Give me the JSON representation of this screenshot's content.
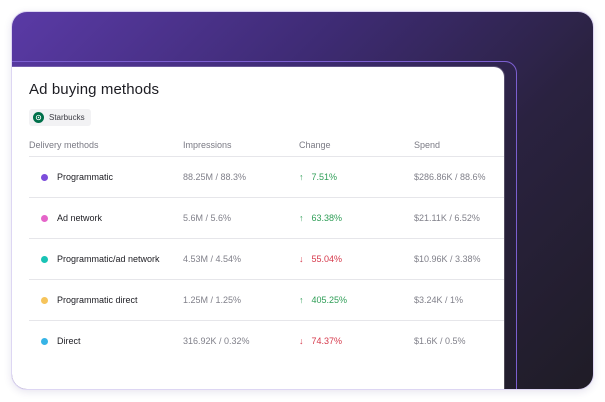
{
  "card": {
    "title": "Ad buying methods",
    "advertiser_chip": "Starbucks"
  },
  "table": {
    "headers": {
      "method": "Delivery methods",
      "impressions": "Impressions",
      "change": "Change",
      "spend": "Spend"
    },
    "rows": [
      {
        "method": "Programmatic",
        "dot_color": "#7c4ddb",
        "impressions": "88.25M / 88.3%",
        "change_arrow": "↑",
        "change": "7.51%",
        "direction": "up",
        "spend": "$286.86K / 88.6%"
      },
      {
        "method": "Ad network",
        "dot_color": "#e565c9",
        "impressions": "5.6M / 5.6%",
        "change_arrow": "↑",
        "change": "63.38%",
        "direction": "up",
        "spend": "$21.11K / 6.52%"
      },
      {
        "method": "Programmatic/ad network",
        "dot_color": "#19c3b5",
        "impressions": "4.53M / 4.54%",
        "change_arrow": "↓",
        "change": "55.04%",
        "direction": "down",
        "spend": "$10.96K / 3.38%"
      },
      {
        "method": "Programmatic direct",
        "dot_color": "#f6c45b",
        "impressions": "1.25M / 1.25%",
        "change_arrow": "↑",
        "change": "405.25%",
        "direction": "up",
        "spend": "$3.24K / 1%"
      },
      {
        "method": "Direct",
        "dot_color": "#37b4e6",
        "impressions": "316.92K / 0.32%",
        "change_arrow": "↓",
        "change": "74.37%",
        "direction": "down",
        "spend": "$1.6K / 0.5%"
      }
    ]
  },
  "colors": {
    "positive": "#2f9e57",
    "negative": "#d6394b",
    "brand_purple": "#5a3aa6"
  }
}
